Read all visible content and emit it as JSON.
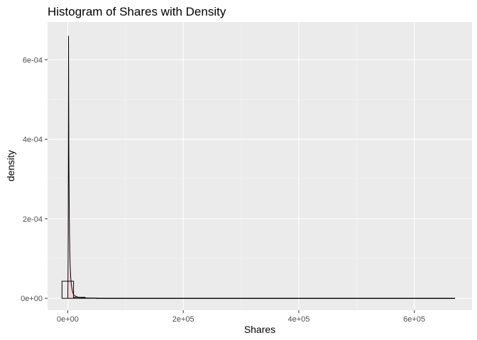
{
  "chart_data": {
    "type": "histogram",
    "title": "Histogram of Shares with Density",
    "xlabel": "Shares",
    "ylabel": "density",
    "xlim": [
      -35000,
      700000
    ],
    "ylim": [
      -3e-05,
      0.000695
    ],
    "x_ticks": [
      {
        "value": 0,
        "label": "0e+00"
      },
      {
        "value": 200000,
        "label": "2e+05"
      },
      {
        "value": 400000,
        "label": "4e+05"
      },
      {
        "value": 600000,
        "label": "6e+05"
      }
    ],
    "y_ticks": [
      {
        "value": 0,
        "label": "0e+00"
      },
      {
        "value": 0.0002,
        "label": "2e-04"
      },
      {
        "value": 0.0004,
        "label": "4e-04"
      },
      {
        "value": 0.0006,
        "label": "6e-04"
      }
    ],
    "histogram_bins": [
      {
        "x0": -10000,
        "x1": 10000,
        "density": 4.3e-05
      },
      {
        "x0": 10000,
        "x1": 30000,
        "density": 2.5e-06
      },
      {
        "x0": 30000,
        "x1": 50000,
        "density": 6e-07
      },
      {
        "x0": 50000,
        "x1": 670000,
        "density": 1e-07
      }
    ],
    "density_curve": {
      "x": [
        0,
        300,
        600,
        900,
        1100,
        1300,
        1500,
        1700,
        1900,
        2100,
        2300,
        2600,
        3000,
        3500,
        4000,
        5000,
        6000,
        8000,
        10000,
        15000,
        20000,
        30000,
        50000,
        100000,
        300000,
        670000
      ],
      "y": [
        0,
        4e-05,
        0.00012,
        0.00031,
        0.00048,
        0.00066,
        0.00055,
        0.00044,
        0.00036,
        0.00031,
        0.00027,
        0.00021,
        0.00016,
        0.00012,
        8.8e-05,
        5.5e-05,
        3.6e-05,
        1.8e-05,
        9e-06,
        4e-06,
        2e-06,
        8e-07,
        3e-07,
        1e-07,
        3e-08,
        1e-07
      ]
    },
    "colors": {
      "panel_background": "#ebebeb",
      "grid_major": "#ffffff",
      "grid_minor": "#f5f5f5",
      "bin_outline": "#000000",
      "density_fill": "#ffc0cb",
      "density_line": "#000000"
    },
    "grid": true,
    "legend": "none"
  }
}
